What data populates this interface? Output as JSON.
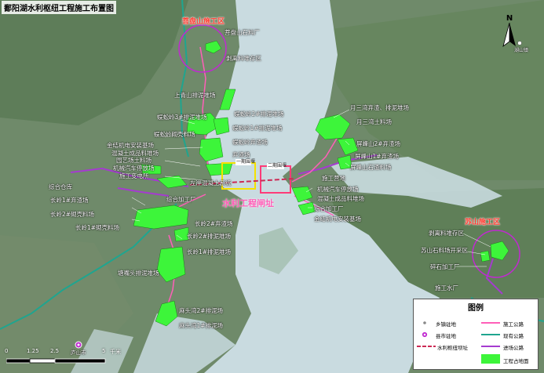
{
  "title": "鄱阳湖水利枢纽工程施工布置图",
  "north_label": "N",
  "zones": {
    "zone_a": "菩盘山施工区",
    "zone_b": "苏山施工区"
  },
  "dam_label": "水利工程闸址",
  "box_labels": {
    "first": "一期围堰",
    "second": "二期围堰"
  },
  "small_labels": {
    "top_right": "湖山镇",
    "bottom_left": "庐山市"
  },
  "labels": {
    "l01": "菩盘山石料厂",
    "l02": "剥离料堆存区",
    "l03": "上青山排泥堆场",
    "l04": "蜈蚣岭2#排泥堆场",
    "l05": "蜈蚣岭3#排泥堆场",
    "l06": "蜈蚣岭1#排泥堆场",
    "l07": "蜈蚣岭砌壳料场",
    "l08": "蜈蚣岭弃渣场",
    "l09": "金结机电安装基场",
    "l10": "混凝土成品料堆场",
    "l11": "弃渣场",
    "l12": "园艺场土料场",
    "l13": "机械汽车停放场",
    "l14": "施工变电所",
    "l15": "左岸混凝土系统",
    "l16": "综合仓库",
    "l17": "综合加工厂",
    "l18": "长岭1#弃渣场",
    "l19": "长岭2#砌壳料场",
    "l20": "长岭1#砌壳料场",
    "l21": "长岭2#弃渣场",
    "l22": "长岭2#排泥堆场",
    "l23": "长岭1#排泥堆场",
    "l24": "塘嘴头排泥堆场",
    "l25": "麻头湾2#排泥场",
    "l26": "麻头湾1#排泥场",
    "l27": "月三湾弃渣、排泥堆场",
    "l28": "月三湾土料场",
    "l29": "屏峰山2#弃渣场",
    "l30": "屏峰山1#弃渣场",
    "l31": "屏峰山石渣料场",
    "l32": "施工营地",
    "l33": "机械汽车停放场",
    "l34": "混凝土成品料堆场",
    "l35": "综合加工厂",
    "l36": "金结机电安装基场",
    "l37": "剥离料堆存区",
    "l38": "苏山石料场开采区",
    "l39": "碎石加工厂",
    "l40": "施工水厂"
  },
  "scale": {
    "ticks": [
      "0",
      "1.25",
      "2.5",
      "5"
    ],
    "unit": "千米"
  },
  "legend": {
    "title": "图例",
    "items": [
      {
        "label": "乡镇驻地",
        "symbol": "dot"
      },
      {
        "label": "施工公路",
        "symbol": "line-pink"
      },
      {
        "label": "县市驻地",
        "symbol": "circle"
      },
      {
        "label": "现有公路",
        "symbol": "line-teal"
      },
      {
        "label": "水利枢纽坝址",
        "symbol": "line-dash"
      },
      {
        "label": "进场公路",
        "symbol": "line-purple"
      },
      {
        "label": "工程占地面",
        "symbol": "rect-green"
      }
    ]
  },
  "colors": {
    "water": "#c9dbe0",
    "land": "#6f8a6a",
    "footprint": "#3df53a",
    "zone_red": "#ff3b30",
    "zone_circle": "#c02ad0",
    "road_teal": "#1fa58f",
    "road_pink": "#ff5fb8",
    "road_purple": "#a53bd0",
    "dam": "#cc2a55"
  }
}
